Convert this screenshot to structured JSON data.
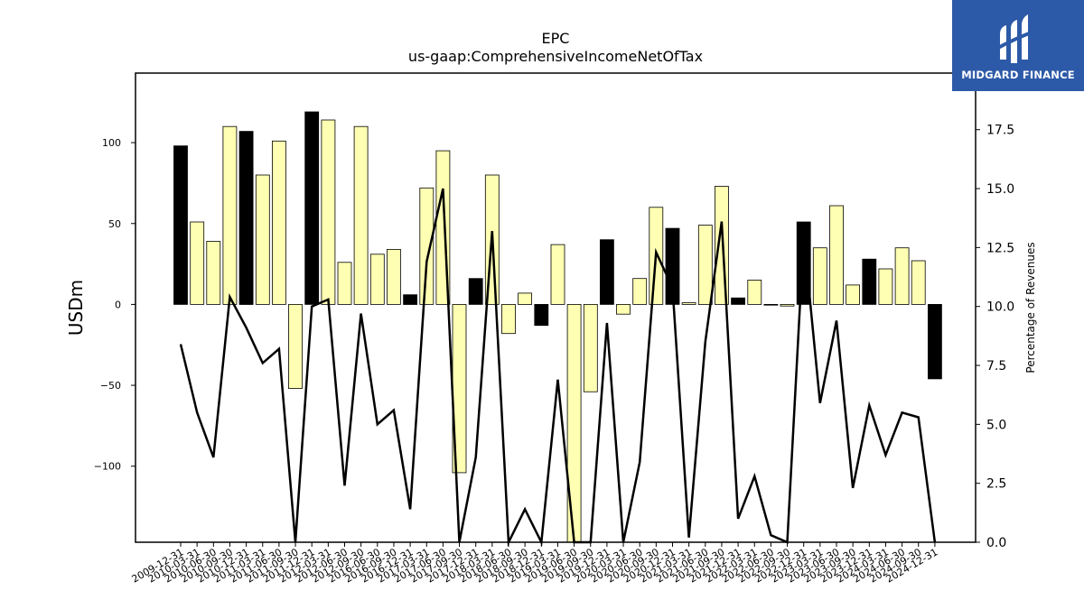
{
  "brand": {
    "name": "MIDGARD FINANCE",
    "color": "#2d5aa8"
  },
  "chart_data": {
    "type": "bar",
    "title": "EPC",
    "subtitle": "us-gaap:ComprehensiveIncomeNetOfTax",
    "ylabel": "USDm",
    "y2label": "Percentage of Revenues",
    "ylim": [
      -147,
      143
    ],
    "y2lim": [
      0,
      19.9
    ],
    "yticks": [
      -100,
      -50,
      0,
      50,
      100
    ],
    "y2ticks": [
      0.0,
      2.5,
      5.0,
      7.5,
      10.0,
      12.5,
      15.0,
      17.5
    ],
    "colors": {
      "q4_bar": "#000000",
      "quarter_bar": "#ffffb3",
      "line": "#000000"
    },
    "categories": [
      "2009-12-31",
      "2010-03-31",
      "2010-06-30",
      "2010-09-30",
      "2010-12-31",
      "2011-03-31",
      "2011-06-30",
      "2011-09-30",
      "2011-12-31",
      "2012-03-31",
      "2012-06-30",
      "2012-09-30",
      "2016-06-30",
      "2016-09-30",
      "2016-12-31",
      "2017-03-31",
      "2017-06-30",
      "2017-09-30",
      "2017-12-31",
      "2018-03-31",
      "2018-06-30",
      "2018-09-30",
      "2018-12-31",
      "2019-03-31",
      "2019-06-30",
      "2019-09-30",
      "2019-12-31",
      "2020-03-31",
      "2020-06-30",
      "2020-09-30",
      "2020-12-31",
      "2021-03-31",
      "2021-06-30",
      "2021-09-30",
      "2021-12-31",
      "2022-03-31",
      "2022-06-30",
      "2022-09-30",
      "2022-12-31",
      "2023-03-31",
      "2023-06-30",
      "2023-09-30",
      "2023-12-31",
      "2024-03-31",
      "2024-06-30",
      "2024-09-30",
      "2024-12-31"
    ],
    "series": [
      {
        "kind": "bar",
        "values": [
          98,
          51,
          39,
          110,
          107,
          80,
          101,
          -52,
          119,
          114,
          26,
          110,
          31,
          34,
          6,
          72,
          95,
          -104,
          16,
          80,
          -18,
          7,
          -13,
          37,
          -148,
          -54,
          40,
          -6,
          16,
          60,
          47,
          1,
          49,
          73,
          4,
          15,
          0,
          -1,
          51,
          35,
          61,
          12,
          28,
          22,
          35,
          27,
          -46
        ],
        "q4": [
          true,
          false,
          false,
          false,
          true,
          false,
          false,
          false,
          true,
          false,
          false,
          false,
          false,
          false,
          true,
          false,
          false,
          false,
          true,
          false,
          false,
          false,
          true,
          false,
          false,
          false,
          true,
          false,
          false,
          false,
          true,
          false,
          false,
          false,
          true,
          false,
          false,
          false,
          true,
          false,
          false,
          false,
          true,
          false,
          false,
          false,
          true
        ]
      },
      {
        "kind": "line",
        "axis": "right",
        "values": [
          8.4,
          5.5,
          3.6,
          10.4,
          9.1,
          7.6,
          8.2,
          -1.0,
          10.0,
          10.3,
          2.4,
          9.7,
          5.0,
          5.6,
          1.4,
          11.9,
          15.0,
          -1.0,
          3.6,
          13.2,
          -0.5,
          1.4,
          -1.0,
          6.9,
          -1.0,
          -1.0,
          9.3,
          -0.3,
          3.4,
          12.3,
          10.8,
          0.2,
          8.5,
          13.6,
          1.0,
          2.8,
          0.3,
          -0.5,
          13.0,
          5.9,
          9.4,
          2.3,
          5.8,
          3.7,
          5.5,
          5.3,
          -0.5
        ]
      }
    ]
  }
}
